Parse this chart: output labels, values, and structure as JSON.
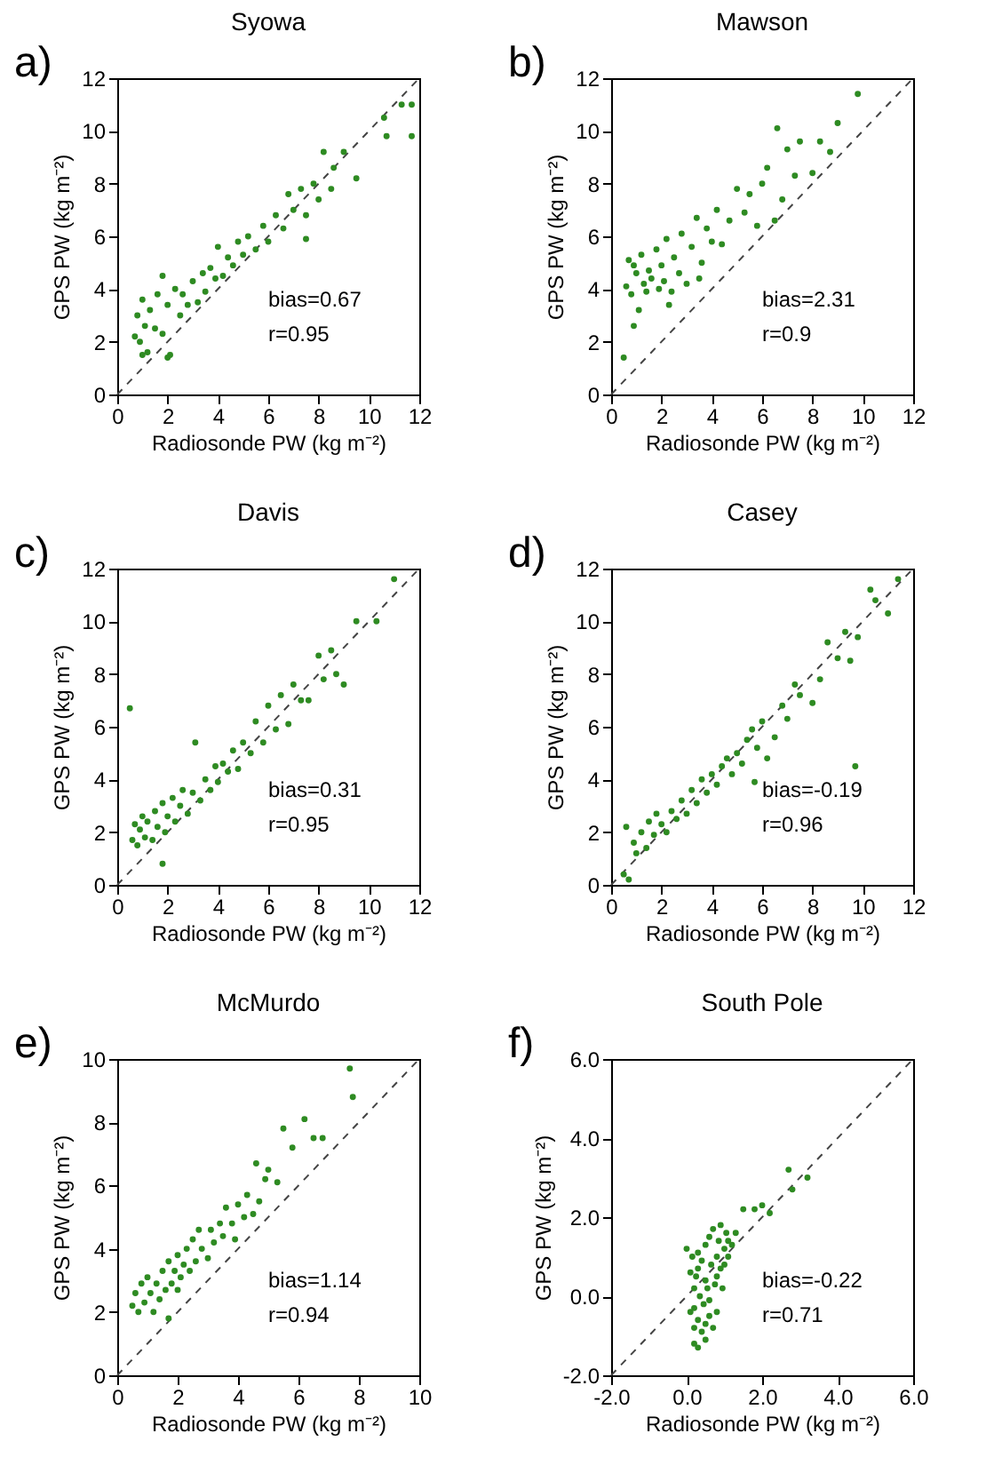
{
  "chart_data": [
    {
      "type": "scatter",
      "title": "Syowa",
      "xlabel": "Radiosonde PW (kg m⁻²)",
      "ylabel": "GPS PW (kg m⁻²)",
      "xlim": [
        0,
        12
      ],
      "ylim": [
        0,
        12
      ],
      "xticks": [
        0,
        2,
        4,
        6,
        8,
        10,
        12
      ],
      "yticks": [
        0,
        2,
        4,
        6,
        8,
        10,
        12
      ],
      "annotations": [
        "a)",
        "bias=0.67",
        "r=0.95"
      ],
      "series": [
        {
          "color": "#2e8b22",
          "marker": "circle",
          "x": [
            0.7,
            0.8,
            0.9,
            1.0,
            1.1,
            1.2,
            1.3,
            1.5,
            1.6,
            1.8,
            2.0,
            2.1,
            2.3,
            2.5,
            2.6,
            2.8,
            3.0,
            3.2,
            3.4,
            3.5,
            3.7,
            3.9,
            4.0,
            4.2,
            4.4,
            4.6,
            4.8,
            5.0,
            5.2,
            5.5,
            5.8,
            6.0,
            6.3,
            6.6,
            6.8,
            7.0,
            7.3,
            7.5,
            7.8,
            8.0,
            8.2,
            8.5,
            8.6,
            9.0,
            9.5,
            10.6,
            10.7,
            11.3,
            11.7,
            11.7,
            7.5,
            1.0,
            1.8,
            2.0
          ],
          "values": [
            2.2,
            3.0,
            2.0,
            3.6,
            2.6,
            1.6,
            3.2,
            2.5,
            3.8,
            2.3,
            3.4,
            1.5,
            4.0,
            3.0,
            3.8,
            3.4,
            4.3,
            3.5,
            4.6,
            3.9,
            4.8,
            4.4,
            5.6,
            4.5,
            5.2,
            4.9,
            5.8,
            5.3,
            6.0,
            5.5,
            6.4,
            5.8,
            6.8,
            6.3,
            7.6,
            7.0,
            7.8,
            6.8,
            8.0,
            7.4,
            9.2,
            7.8,
            8.6,
            9.2,
            8.2,
            10.5,
            9.8,
            11.0,
            11.0,
            9.8,
            5.9,
            1.5,
            4.5,
            1.4
          ]
        },
        {
          "type": "line",
          "line_style": "dashed",
          "color": "#444444",
          "x": [
            0,
            12
          ],
          "values": [
            0,
            12
          ]
        }
      ]
    },
    {
      "type": "scatter",
      "title": "Mawson",
      "xlabel": "Radiosonde PW (kg m⁻²)",
      "ylabel": "GPS PW (kg m⁻²)",
      "xlim": [
        0,
        12
      ],
      "ylim": [
        0,
        12
      ],
      "xticks": [
        0,
        2,
        4,
        6,
        8,
        10,
        12
      ],
      "yticks": [
        0,
        2,
        4,
        6,
        8,
        10,
        12
      ],
      "annotations": [
        "b)",
        "bias=2.31",
        "r=0.9"
      ],
      "series": [
        {
          "color": "#2e8b22",
          "marker": "circle",
          "x": [
            0.5,
            0.6,
            0.7,
            0.8,
            0.9,
            1.0,
            1.1,
            1.2,
            1.3,
            1.4,
            1.5,
            1.6,
            1.8,
            1.9,
            2.0,
            2.1,
            2.2,
            2.4,
            2.5,
            2.7,
            2.8,
            3.0,
            3.2,
            3.4,
            3.6,
            3.8,
            4.0,
            4.2,
            4.4,
            4.7,
            5.0,
            5.3,
            5.5,
            5.8,
            6.0,
            6.2,
            6.5,
            6.6,
            6.8,
            7.0,
            7.3,
            7.5,
            8.0,
            8.3,
            8.7,
            9.0,
            9.8,
            0.9,
            2.3,
            3.5
          ],
          "values": [
            1.4,
            4.1,
            5.1,
            3.8,
            2.6,
            4.6,
            3.2,
            5.3,
            4.2,
            3.9,
            4.7,
            4.4,
            5.5,
            4.0,
            4.9,
            4.3,
            5.9,
            3.9,
            5.2,
            4.6,
            6.1,
            4.2,
            5.6,
            6.7,
            5.0,
            6.3,
            5.8,
            7.0,
            5.7,
            6.6,
            7.8,
            6.9,
            7.6,
            6.4,
            8.0,
            8.6,
            6.6,
            10.1,
            7.4,
            9.3,
            8.3,
            9.6,
            8.4,
            9.6,
            9.2,
            10.3,
            11.4,
            4.9,
            3.4,
            4.4
          ]
        },
        {
          "type": "line",
          "line_style": "dashed",
          "color": "#444444",
          "x": [
            0,
            12
          ],
          "values": [
            0,
            12
          ]
        }
      ]
    },
    {
      "type": "scatter",
      "title": "Davis",
      "xlabel": "Radiosonde PW (kg m⁻²)",
      "ylabel": "GPS PW (kg m⁻²)",
      "xlim": [
        0,
        12
      ],
      "ylim": [
        0,
        12
      ],
      "xticks": [
        0,
        2,
        4,
        6,
        8,
        10,
        12
      ],
      "yticks": [
        0,
        2,
        4,
        6,
        8,
        10,
        12
      ],
      "annotations": [
        "c)",
        "bias=0.31",
        "r=0.95"
      ],
      "series": [
        {
          "color": "#2e8b22",
          "marker": "circle",
          "x": [
            0.5,
            0.6,
            0.7,
            0.8,
            0.9,
            1.0,
            1.1,
            1.2,
            1.4,
            1.5,
            1.6,
            1.8,
            1.9,
            2.0,
            2.2,
            2.3,
            2.5,
            2.6,
            2.8,
            3.0,
            3.1,
            3.3,
            3.5,
            3.7,
            3.9,
            4.0,
            4.2,
            4.4,
            4.6,
            4.8,
            5.0,
            5.3,
            5.5,
            5.8,
            6.0,
            6.3,
            6.5,
            6.8,
            7.0,
            7.3,
            7.6,
            8.0,
            8.2,
            8.5,
            8.7,
            9.0,
            9.5,
            10.3,
            11.0,
            1.8
          ],
          "values": [
            6.7,
            1.7,
            2.3,
            1.5,
            2.1,
            2.6,
            1.8,
            2.4,
            1.7,
            2.8,
            2.2,
            3.1,
            2.0,
            2.6,
            3.3,
            2.4,
            3.0,
            3.6,
            2.7,
            3.5,
            5.4,
            3.2,
            4.0,
            3.6,
            4.5,
            3.9,
            4.6,
            4.3,
            5.1,
            4.4,
            5.4,
            5.0,
            6.2,
            5.4,
            6.8,
            5.9,
            7.2,
            6.1,
            7.6,
            7.0,
            7.0,
            8.7,
            7.8,
            8.9,
            8.0,
            7.6,
            10.0,
            10.0,
            11.6,
            0.8
          ]
        },
        {
          "type": "line",
          "line_style": "dashed",
          "color": "#444444",
          "x": [
            0,
            12
          ],
          "values": [
            0,
            12
          ]
        }
      ]
    },
    {
      "type": "scatter",
      "title": "Casey",
      "xlabel": "Radiosonde PW (kg m⁻²)",
      "ylabel": "GPS PW (kg m⁻²)",
      "xlim": [
        0,
        12
      ],
      "ylim": [
        0,
        12
      ],
      "xticks": [
        0,
        2,
        4,
        6,
        8,
        10,
        12
      ],
      "yticks": [
        0,
        2,
        4,
        6,
        8,
        10,
        12
      ],
      "annotations": [
        "d)",
        "bias=-0.19",
        "r=0.96"
      ],
      "series": [
        {
          "color": "#2e8b22",
          "marker": "circle",
          "x": [
            0.5,
            0.6,
            0.7,
            0.9,
            1.0,
            1.2,
            1.4,
            1.5,
            1.7,
            1.8,
            2.0,
            2.2,
            2.4,
            2.6,
            2.8,
            3.0,
            3.2,
            3.4,
            3.6,
            3.8,
            4.0,
            4.2,
            4.4,
            4.6,
            4.8,
            5.0,
            5.2,
            5.4,
            5.6,
            5.8,
            6.0,
            6.2,
            6.5,
            6.8,
            7.0,
            7.3,
            7.5,
            8.0,
            8.3,
            8.6,
            9.0,
            9.3,
            9.5,
            9.7,
            9.8,
            10.3,
            10.5,
            11.0,
            11.4,
            5.7
          ],
          "values": [
            0.4,
            2.2,
            0.2,
            1.6,
            1.2,
            2.0,
            1.4,
            2.4,
            1.9,
            2.7,
            2.3,
            2.0,
            2.8,
            2.5,
            3.2,
            2.7,
            3.6,
            3.1,
            4.0,
            3.5,
            4.2,
            3.8,
            4.5,
            4.8,
            4.2,
            5.0,
            4.6,
            5.5,
            5.9,
            5.2,
            6.2,
            4.8,
            5.6,
            6.8,
            6.3,
            7.6,
            7.2,
            6.9,
            7.8,
            9.2,
            8.6,
            9.6,
            8.5,
            4.5,
            9.4,
            11.2,
            10.8,
            10.3,
            11.6,
            3.9
          ]
        },
        {
          "type": "line",
          "line_style": "dashed",
          "color": "#444444",
          "x": [
            0,
            12
          ],
          "values": [
            0,
            12
          ]
        }
      ]
    },
    {
      "type": "scatter",
      "title": "McMurdo",
      "xlabel": "Radiosonde PW (kg m⁻²)",
      "ylabel": "GPS PW (kg m⁻²)",
      "xlim": [
        0,
        10
      ],
      "ylim": [
        0,
        10
      ],
      "xticks": [
        0,
        2,
        4,
        6,
        8,
        10
      ],
      "yticks": [
        0,
        2,
        4,
        6,
        8,
        10
      ],
      "annotations": [
        "e)",
        "bias=1.14",
        "r=0.94"
      ],
      "series": [
        {
          "color": "#2e8b22",
          "marker": "circle",
          "x": [
            0.5,
            0.6,
            0.7,
            0.8,
            0.9,
            1.0,
            1.1,
            1.2,
            1.3,
            1.4,
            1.5,
            1.6,
            1.7,
            1.8,
            1.9,
            2.0,
            2.1,
            2.2,
            2.3,
            2.4,
            2.5,
            2.6,
            2.7,
            2.8,
            3.0,
            3.1,
            3.2,
            3.4,
            3.5,
            3.6,
            3.8,
            3.9,
            4.0,
            4.2,
            4.3,
            4.5,
            4.6,
            4.7,
            4.9,
            5.0,
            5.3,
            5.5,
            5.8,
            6.2,
            6.5,
            6.8,
            7.7,
            7.8,
            1.7,
            2.0
          ],
          "values": [
            2.2,
            2.6,
            2.0,
            2.9,
            2.3,
            3.1,
            2.6,
            2.0,
            2.9,
            2.4,
            3.3,
            2.7,
            3.6,
            2.9,
            3.3,
            3.8,
            3.1,
            3.5,
            4.0,
            3.3,
            4.3,
            3.6,
            4.6,
            4.0,
            3.7,
            4.6,
            4.2,
            4.8,
            4.4,
            5.3,
            4.8,
            4.3,
            5.4,
            5.0,
            5.7,
            5.1,
            6.7,
            5.5,
            6.2,
            6.5,
            6.1,
            7.8,
            7.2,
            8.1,
            7.5,
            7.5,
            9.7,
            8.8,
            1.8,
            2.7
          ]
        },
        {
          "type": "line",
          "line_style": "dashed",
          "color": "#444444",
          "x": [
            0,
            10
          ],
          "values": [
            0,
            10
          ]
        }
      ]
    },
    {
      "type": "scatter",
      "title": "South Pole",
      "xlabel": "Radiosonde PW (kg m⁻²)",
      "ylabel": "GPS PW (kg m⁻²)",
      "xlim": [
        -2,
        6
      ],
      "ylim": [
        -2,
        6
      ],
      "xticks": [
        {
          "value": -2,
          "label": "-2.0"
        },
        {
          "value": 0,
          "label": "0.0"
        },
        {
          "value": 2,
          "label": "2.0"
        },
        {
          "value": 4,
          "label": "4.0"
        },
        {
          "value": 6,
          "label": "6.0"
        }
      ],
      "yticks": [
        {
          "value": -2,
          "label": "-2.0"
        },
        {
          "value": 0,
          "label": "0.0"
        },
        {
          "value": 2,
          "label": "2.0"
        },
        {
          "value": 4,
          "label": "4.0"
        },
        {
          "value": 6,
          "label": "6.0"
        }
      ],
      "annotations": [
        "f)",
        "bias=-0.22",
        "r=0.71"
      ],
      "series": [
        {
          "color": "#2e8b22",
          "marker": "circle",
          "x": [
            0.0,
            0.1,
            0.1,
            0.15,
            0.2,
            0.2,
            0.2,
            0.25,
            0.3,
            0.3,
            0.3,
            0.35,
            0.4,
            0.4,
            0.45,
            0.5,
            0.5,
            0.5,
            0.55,
            0.6,
            0.6,
            0.65,
            0.7,
            0.7,
            0.75,
            0.8,
            0.8,
            0.85,
            0.9,
            0.9,
            0.95,
            1.0,
            1.0,
            1.05,
            1.1,
            1.1,
            1.2,
            1.3,
            1.5,
            1.8,
            2.0,
            2.2,
            2.7,
            2.8,
            3.2,
            0.3,
            0.6,
            0.2,
            0.5,
            0.8
          ],
          "values": [
            1.2,
            0.6,
            -0.4,
            1.0,
            -0.8,
            0.2,
            -1.2,
            0.5,
            -0.6,
            1.1,
            -1.3,
            0.0,
            0.9,
            -0.9,
            -0.2,
            1.3,
            0.4,
            -1.1,
            0.2,
            1.5,
            -0.5,
            0.8,
            -0.8,
            1.7,
            0.3,
            1.0,
            -0.4,
            1.4,
            0.7,
            1.8,
            0.2,
            1.2,
            0.8,
            1.6,
            1.0,
            1.4,
            1.3,
            1.6,
            2.2,
            2.2,
            2.3,
            2.1,
            3.2,
            2.7,
            3.0,
            0.7,
            -0.1,
            -0.3,
            -0.7,
            0.5
          ]
        },
        {
          "type": "line",
          "line_style": "dashed",
          "color": "#444444",
          "x": [
            -2,
            6
          ],
          "values": [
            -2,
            6
          ]
        }
      ]
    }
  ]
}
